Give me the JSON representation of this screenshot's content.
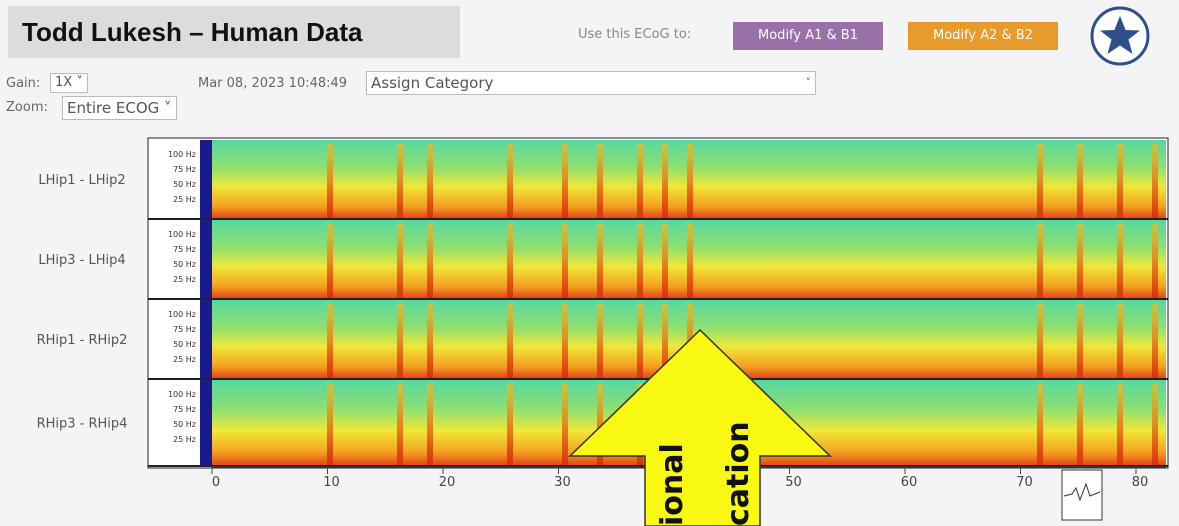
{
  "header": {
    "title": "Todd Lukesh – Human Data",
    "use_label": "Use this ECoG to:",
    "buttons": [
      "Modify A1 & B1",
      "Modify A2 & B2"
    ]
  },
  "controls": {
    "gain_label": "Gain:",
    "gain_value": "1X",
    "timestamp": "Mar 08, 2023 10:48:49",
    "category": "Assign Category",
    "zoom_label": "Zoom:",
    "zoom_value": "Entire ECOG"
  },
  "channels": [
    "LHip1 - LHip2",
    "LHip3 - LHip4",
    "RHip1 - RHip2",
    "RHip3 - RHip4"
  ],
  "frequency_ticks": [
    "100 Hz",
    "75 Hz",
    "50 Hz",
    "25 Hz"
  ],
  "time_ticks": [
    0,
    10,
    20,
    30,
    40,
    50,
    60,
    70,
    80
  ],
  "overlay": {
    "lines": [
      "ional",
      "cation"
    ]
  }
}
